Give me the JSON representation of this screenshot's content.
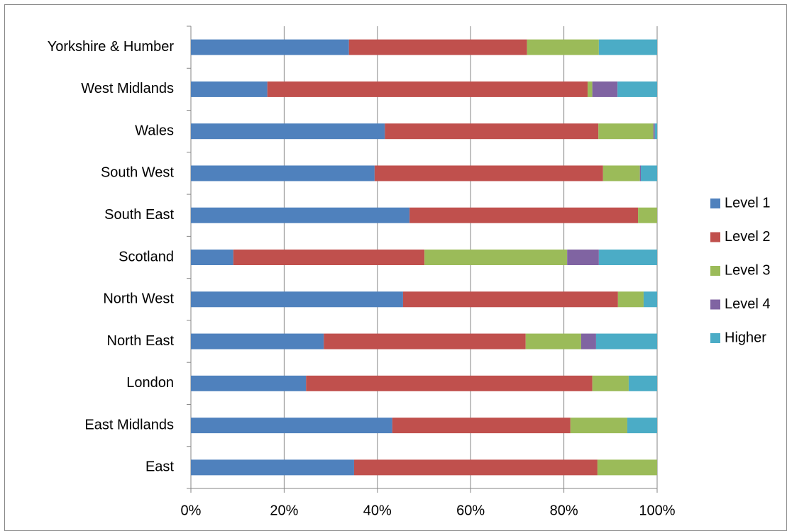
{
  "chart_data": {
    "type": "stacked-bar-horizontal",
    "categories": [
      "East",
      "East Midlands",
      "London",
      "North East",
      "North West",
      "Scotland",
      "South East",
      "South West",
      "Wales",
      "West Midlands",
      "Yorkshire & Humber"
    ],
    "series": [
      {
        "name": "Level 1",
        "color": "#4f81bd",
        "values": [
          35.0,
          43.2,
          24.7,
          28.5,
          45.5,
          9.1,
          46.9,
          39.4,
          41.6,
          16.4,
          33.9
        ]
      },
      {
        "name": "Level 2",
        "color": "#c0504d",
        "values": [
          52.2,
          38.2,
          61.4,
          43.3,
          46.1,
          41.0,
          49.0,
          49.0,
          45.8,
          68.7,
          38.2
        ]
      },
      {
        "name": "Level 3",
        "color": "#9bbb59",
        "values": [
          12.8,
          12.2,
          7.8,
          11.9,
          5.5,
          30.6,
          4.1,
          7.9,
          11.8,
          1.0,
          15.4
        ]
      },
      {
        "name": "Level 4",
        "color": "#8064a2",
        "values": [
          0,
          0,
          0,
          3.2,
          0,
          6.8,
          0,
          0.2,
          0.3,
          5.4,
          0
        ]
      },
      {
        "name": "Higher",
        "color": "#4bacc6",
        "values": [
          0,
          6.4,
          6.1,
          13.1,
          2.9,
          12.5,
          0,
          3.5,
          0.5,
          8.5,
          12.5
        ]
      }
    ],
    "xlim": [
      0,
      100
    ],
    "xticks": [
      {
        "value": 0,
        "label": "0%"
      },
      {
        "value": 20,
        "label": "20%"
      },
      {
        "value": 40,
        "label": "40%"
      },
      {
        "value": 60,
        "label": "60%"
      },
      {
        "value": 80,
        "label": "80%"
      },
      {
        "value": 100,
        "label": "100%"
      }
    ],
    "grid": true,
    "legend": "right"
  }
}
